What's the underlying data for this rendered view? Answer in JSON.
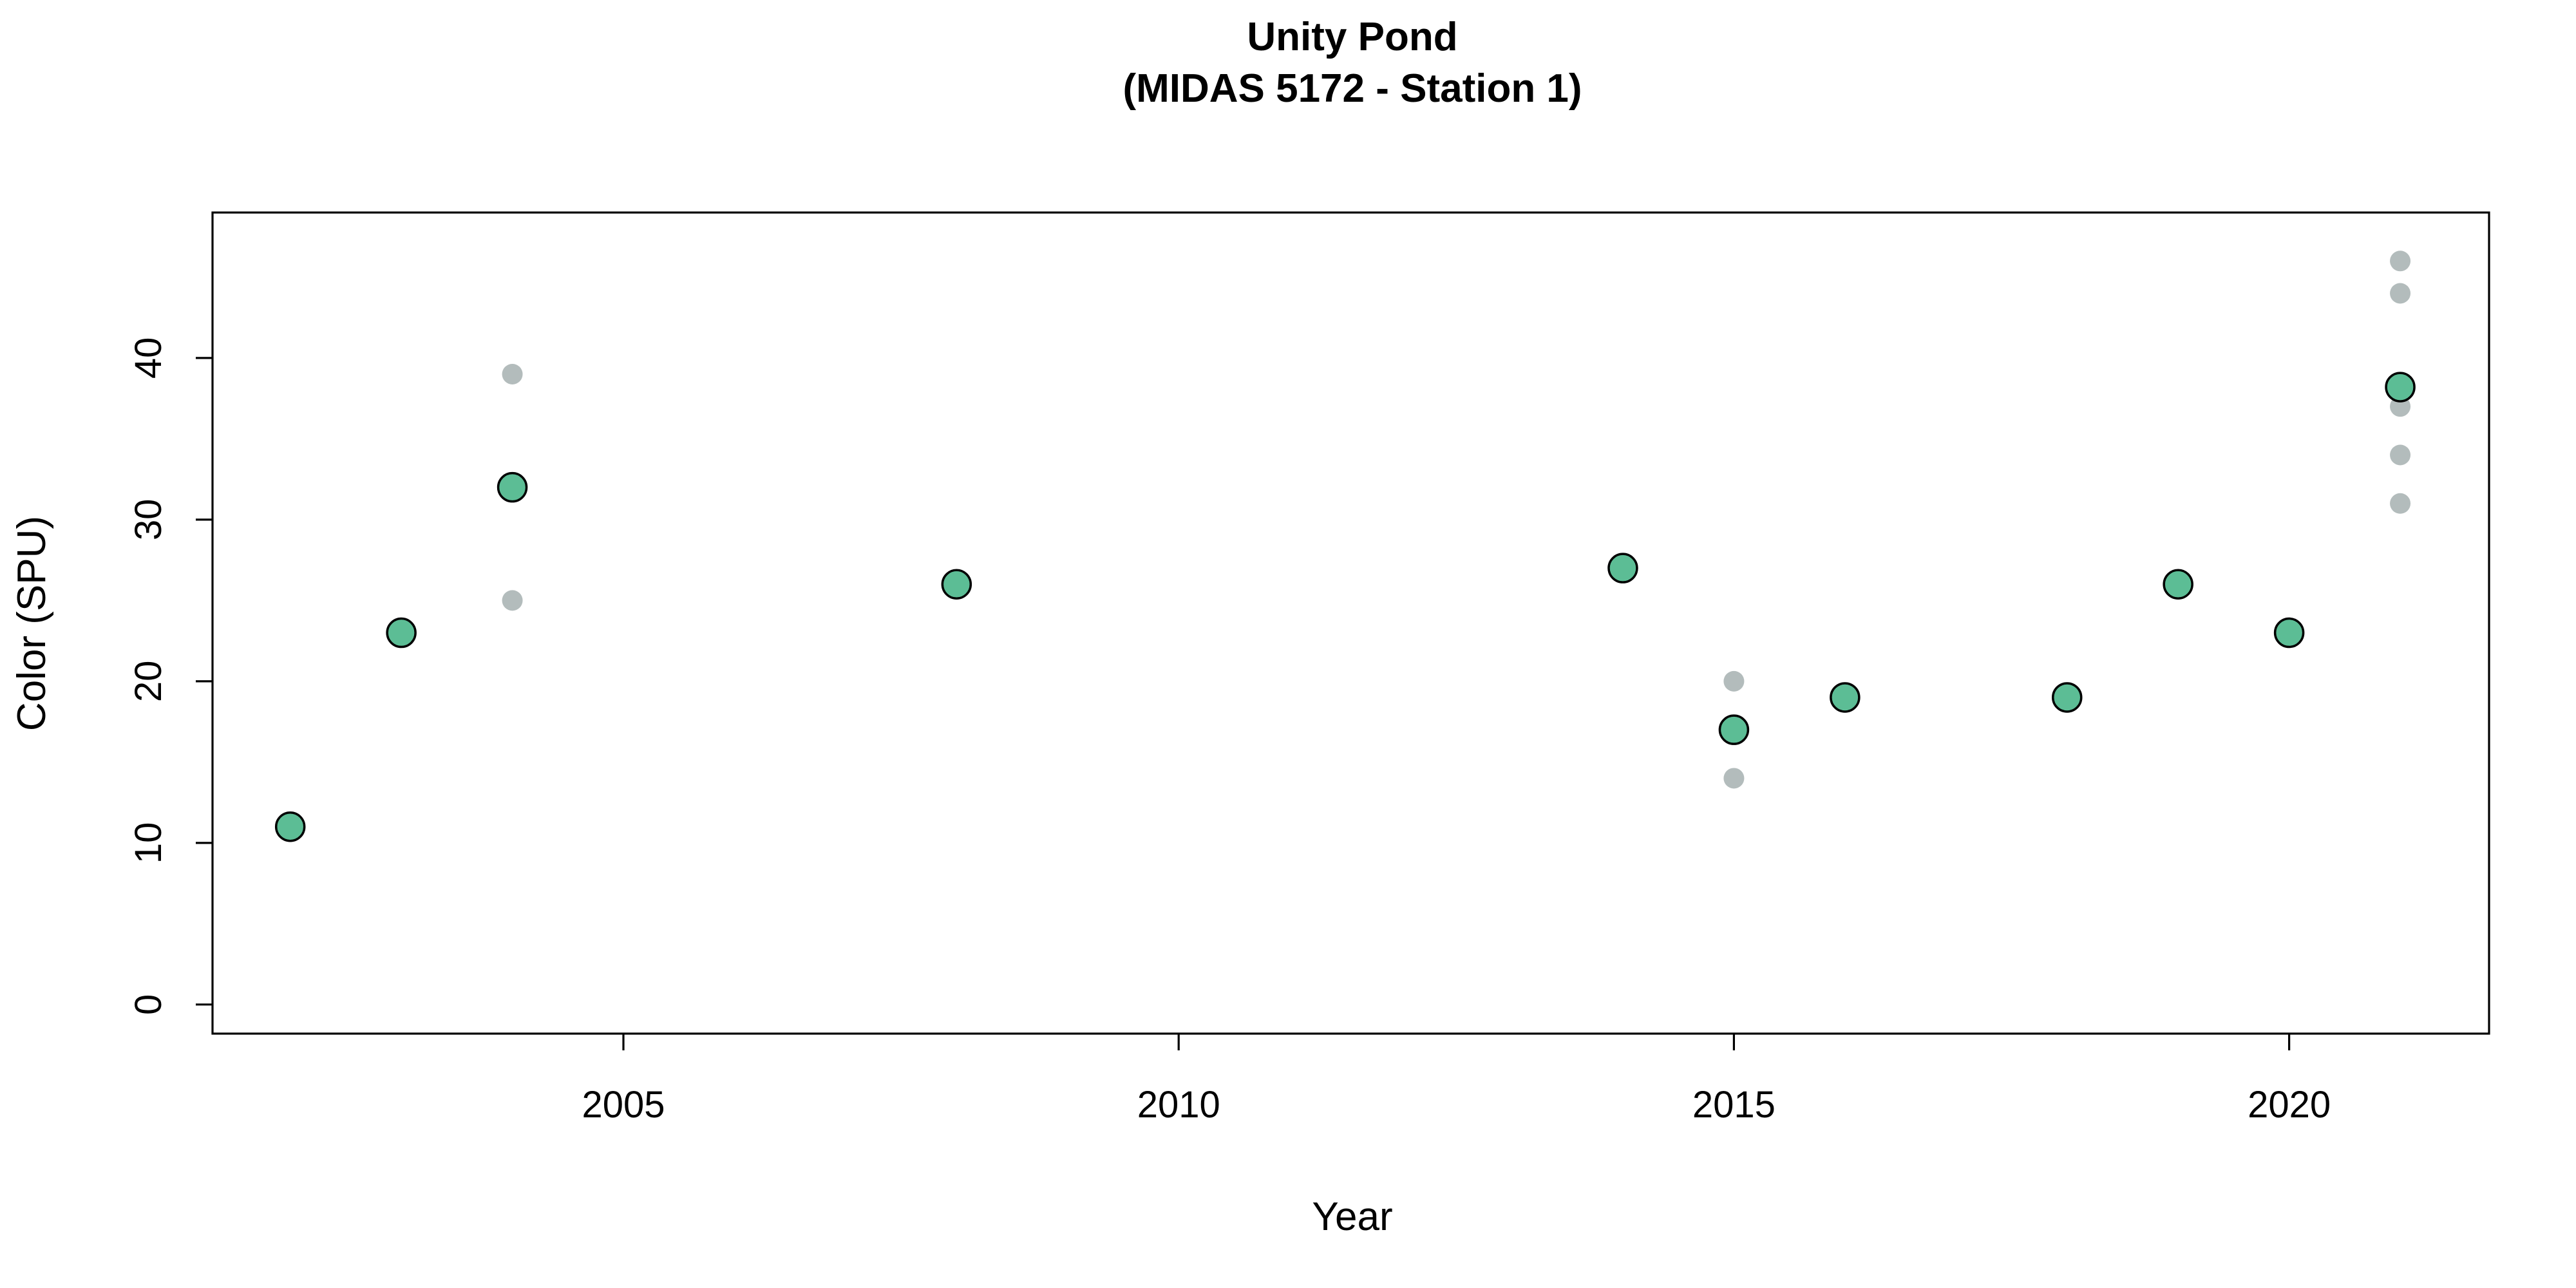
{
  "chart_data": {
    "type": "scatter",
    "title": "Unity Pond",
    "subtitle": "(MIDAS 5172 - Station 1)",
    "xlabel": "Year",
    "ylabel": "Color (SPU)",
    "xlim": [
      2001.3,
      2021.8
    ],
    "ylim": [
      -1.8,
      49
    ],
    "x_ticks": [
      2005,
      2010,
      2015,
      2020
    ],
    "y_ticks": [
      0,
      10,
      20,
      30,
      40
    ],
    "grid": false,
    "legend": "none",
    "series": [
      {
        "role": "individual",
        "color": "#b3bcbc",
        "points": [
          {
            "x": 2004,
            "y": 39
          },
          {
            "x": 2004,
            "y": 25
          },
          {
            "x": 2015,
            "y": 20
          },
          {
            "x": 2015,
            "y": 14
          },
          {
            "x": 2021,
            "y": 46
          },
          {
            "x": 2021,
            "y": 44
          },
          {
            "x": 2021,
            "y": 37
          },
          {
            "x": 2021,
            "y": 34
          },
          {
            "x": 2021,
            "y": 31
          }
        ]
      },
      {
        "role": "mean",
        "color": "#5cbd95",
        "stroke": "#000000",
        "points": [
          {
            "x": 2002,
            "y": 11
          },
          {
            "x": 2003,
            "y": 23
          },
          {
            "x": 2004,
            "y": 32
          },
          {
            "x": 2008,
            "y": 26
          },
          {
            "x": 2014,
            "y": 27
          },
          {
            "x": 2015,
            "y": 17
          },
          {
            "x": 2016,
            "y": 19
          },
          {
            "x": 2018,
            "y": 19
          },
          {
            "x": 2019,
            "y": 26
          },
          {
            "x": 2020,
            "y": 23
          },
          {
            "x": 2021,
            "y": 38.2
          }
        ]
      }
    ]
  }
}
